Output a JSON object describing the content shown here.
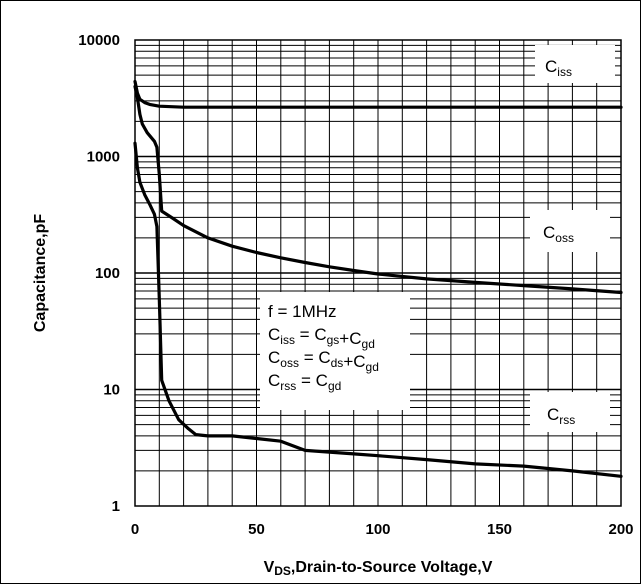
{
  "chart_data": {
    "type": "line",
    "x_axis": {
      "label_main": "V",
      "label_sub": "DS",
      "label_rest": ",Drain-to-Source Voltage,V",
      "range": [
        0,
        200
      ],
      "ticks": [
        0,
        50,
        100,
        150,
        200
      ],
      "tick_labels": [
        "0",
        "50",
        "100",
        "150",
        "200"
      ]
    },
    "y_axis": {
      "label": "Capacitance,pF",
      "scale": "log",
      "range": [
        1,
        10000
      ],
      "ticks": [
        1,
        10,
        100,
        1000,
        10000
      ],
      "tick_labels": [
        "1",
        "10",
        "100",
        "1000",
        "10000"
      ]
    },
    "grid": true,
    "series": [
      {
        "name_main": "C",
        "name_sub": "iss",
        "x": [
          0,
          1,
          2,
          4,
          6,
          10,
          20,
          50,
          100,
          150,
          200
        ],
        "values": [
          4400,
          3500,
          3100,
          2900,
          2800,
          2700,
          2650,
          2650,
          2650,
          2650,
          2650
        ]
      },
      {
        "name_main": "C",
        "name_sub": "oss",
        "x": [
          0,
          1,
          2,
          3,
          5,
          8,
          9,
          10,
          11,
          15,
          20,
          30,
          40,
          50,
          60,
          70,
          80,
          90,
          100,
          120,
          140,
          160,
          180,
          200
        ],
        "values": [
          4000,
          3200,
          2300,
          1900,
          1600,
          1350,
          1200,
          700,
          340,
          300,
          255,
          200,
          170,
          150,
          135,
          123,
          113,
          105,
          98,
          89,
          83,
          78,
          73,
          68
        ]
      },
      {
        "name_main": "C",
        "name_sub": "rss",
        "x": [
          0,
          1,
          2,
          4,
          6,
          8,
          9,
          10,
          11,
          14,
          18,
          22,
          25,
          30,
          40,
          50,
          60,
          70,
          80,
          90,
          100,
          120,
          140,
          160,
          180,
          200
        ],
        "values": [
          1300,
          800,
          600,
          470,
          390,
          320,
          250,
          60,
          12,
          8,
          5.5,
          4.6,
          4.1,
          4.0,
          4.0,
          3.8,
          3.6,
          3.0,
          2.9,
          2.8,
          2.7,
          2.5,
          2.3,
          2.2,
          2.0,
          1.8
        ]
      }
    ],
    "annotation": {
      "lines": [
        {
          "lhs_main": "f",
          "lhs_sub": "",
          "rhs": [
            {
              "main": "1MHz",
              "sub": ""
            }
          ]
        },
        {
          "lhs_main": "C",
          "lhs_sub": "iss",
          "rhs": [
            {
              "main": "C",
              "sub": "gs"
            },
            {
              "main": "+C",
              "sub": "gd"
            }
          ]
        },
        {
          "lhs_main": "C",
          "lhs_sub": "oss",
          "rhs": [
            {
              "main": "C",
              "sub": "ds"
            },
            {
              "main": "+C",
              "sub": "gd"
            }
          ]
        },
        {
          "lhs_main": "C",
          "lhs_sub": "rss",
          "rhs": [
            {
              "main": "C",
              "sub": "gd"
            }
          ]
        }
      ]
    }
  },
  "colors": {
    "line": "#000000",
    "grid": "#000000",
    "background": "#ffffff"
  }
}
